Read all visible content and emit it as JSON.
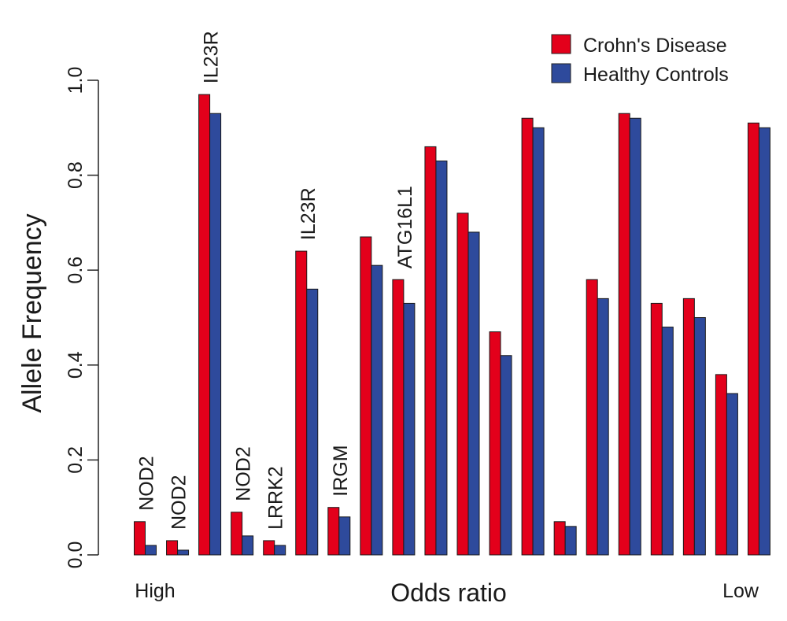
{
  "chart_data": {
    "type": "bar",
    "title": "",
    "xlabel": "Odds ratio",
    "ylabel": "Allele Frequency",
    "x_left_label": "High",
    "x_right_label": "Low",
    "ylim": [
      0,
      1
    ],
    "yticks": [
      "0.0",
      "0.2",
      "0.4",
      "0.6",
      "0.8",
      "1.0"
    ],
    "grid": false,
    "legend_position": "top-right",
    "bar_labels": [
      "NOD2",
      "NOD2",
      "IL23R",
      "NOD2",
      "LRRK2",
      "IL23R",
      "IRGM",
      "",
      "ATG16L1",
      "",
      "",
      "",
      "",
      "",
      "",
      "",
      "",
      "",
      "",
      ""
    ],
    "series": [
      {
        "name": "Crohn's Disease",
        "color": "#e3001b",
        "values": [
          0.07,
          0.03,
          0.97,
          0.09,
          0.03,
          0.64,
          0.1,
          0.67,
          0.58,
          0.86,
          0.72,
          0.47,
          0.92,
          0.07,
          0.58,
          0.93,
          0.53,
          0.54,
          0.38,
          0.91
        ]
      },
      {
        "name": "Healthy Controls",
        "color": "#2e4a9c",
        "values": [
          0.02,
          0.01,
          0.93,
          0.04,
          0.02,
          0.56,
          0.08,
          0.61,
          0.53,
          0.83,
          0.68,
          0.42,
          0.9,
          0.06,
          0.54,
          0.92,
          0.48,
          0.5,
          0.34,
          0.9
        ]
      }
    ]
  }
}
